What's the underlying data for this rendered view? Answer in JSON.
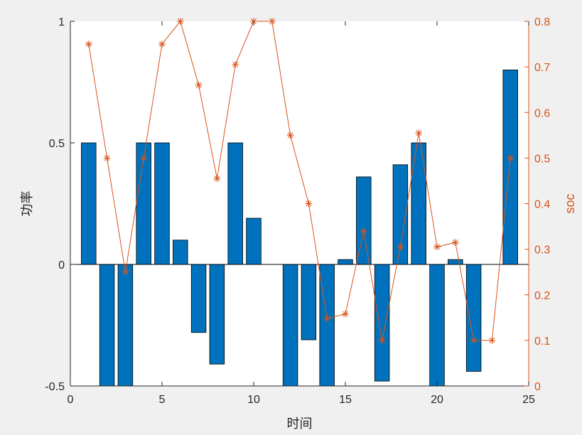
{
  "chart_data": {
    "type": "bar+line",
    "xlabel": "时间",
    "ylabel_left": "功率",
    "ylabel_right": "soc",
    "xlim": [
      0,
      25
    ],
    "ylim_left": [
      -0.5,
      1
    ],
    "ylim_right": [
      0,
      0.8
    ],
    "x_ticks": [
      "0",
      "5",
      "10",
      "15",
      "20",
      "25"
    ],
    "y_left_ticks": [
      "-0.5",
      "0",
      "0.5",
      "1"
    ],
    "y_right_ticks": [
      "0",
      "0.1",
      "0.2",
      "0.3",
      "0.4",
      "0.5",
      "0.6",
      "0.7",
      "0.8"
    ],
    "x": [
      1,
      2,
      3,
      4,
      5,
      6,
      7,
      8,
      9,
      10,
      11,
      12,
      13,
      14,
      15,
      16,
      17,
      18,
      19,
      20,
      21,
      22,
      23,
      24
    ],
    "series": [
      {
        "type": "bar",
        "axis": "left",
        "color": "#0072bd",
        "values": [
          0.5,
          -0.5,
          -0.5,
          0.5,
          0.5,
          0.1,
          -0.28,
          -0.41,
          0.5,
          0.19,
          0.0,
          -0.5,
          -0.31,
          -0.5,
          0.02,
          0.36,
          -0.48,
          0.41,
          0.5,
          -0.5,
          0.02,
          -0.44,
          0.0,
          0.8
        ]
      },
      {
        "type": "line",
        "axis": "right",
        "marker": "asterisk",
        "color": "#d95319",
        "values": [
          0.75,
          0.5,
          0.25,
          0.5,
          0.75,
          0.8,
          0.66,
          0.455,
          0.705,
          0.8,
          0.8,
          0.55,
          0.4,
          0.148,
          0.158,
          0.34,
          0.1,
          0.305,
          0.555,
          0.305,
          0.315,
          0.1,
          0.1,
          0.5
        ]
      }
    ]
  }
}
